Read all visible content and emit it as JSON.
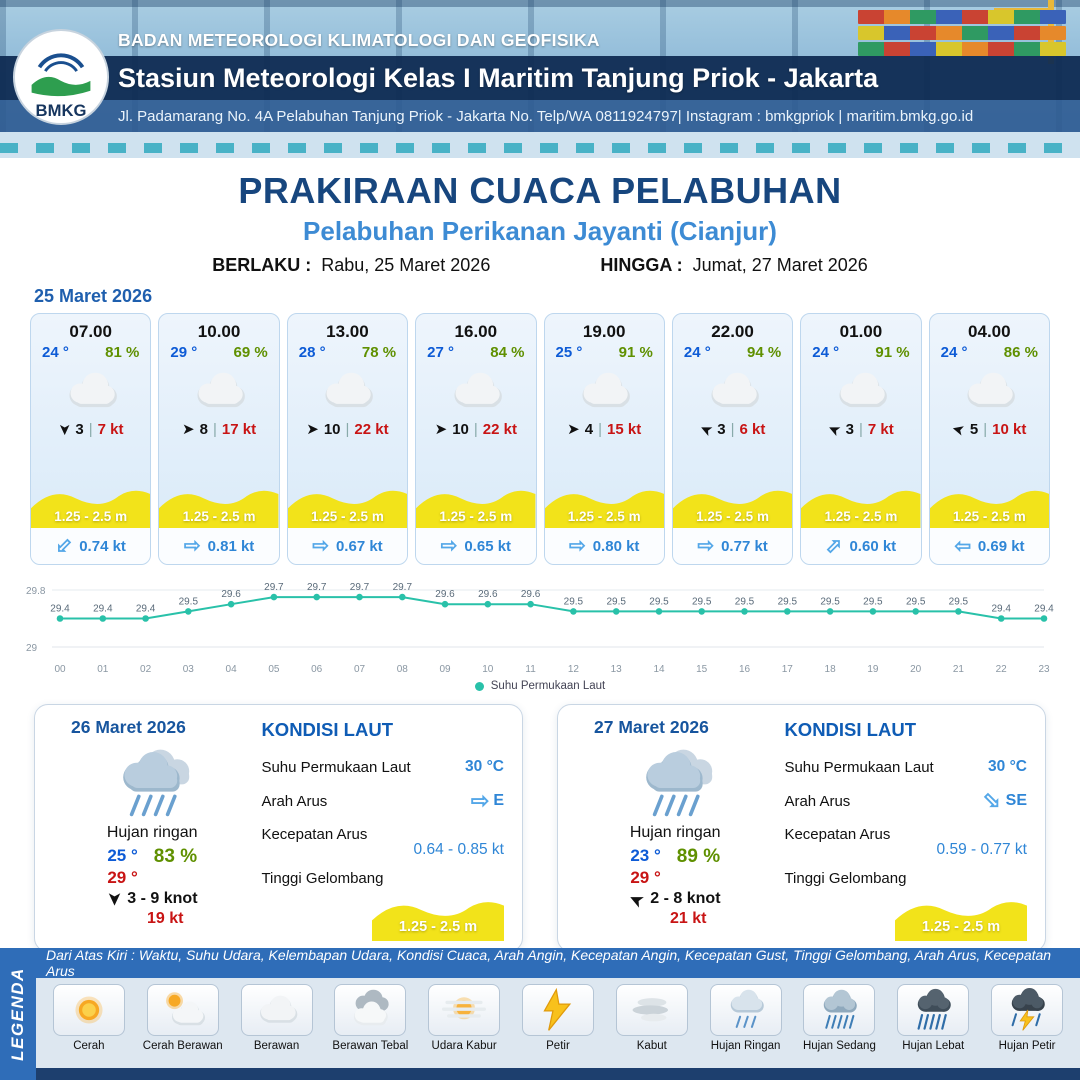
{
  "header": {
    "agency": "BADAN METEOROLOGI KLIMATOLOGI DAN GEOFISIKA",
    "station": "Stasiun Meteorologi Kelas I Maritim Tanjung Priok - Jakarta",
    "address": "Jl. Padamarang No. 4A Pelabuhan Tanjung Priok - Jakarta No. Telp/WA 0811924797| Instagram : bmkgpriok | maritim.bmkg.go.id",
    "logo_text": "BMKG"
  },
  "title": {
    "main": "PRAKIRAAN CUACA PELABUHAN",
    "subtitle": "Pelabuhan Perikanan Jayanti (Cianjur)",
    "valid_label": "BERLAKU :",
    "valid_value": "Rabu, 25 Maret 2026",
    "until_label": "HINGGA :",
    "until_value": "Jumat, 27 Maret 2026"
  },
  "forecast_date": "25 Maret 2026",
  "forecast_cards": [
    {
      "time": "07.00",
      "temp": "24 °",
      "humidity": "81 %",
      "icon": "cloud",
      "wind_speed": "3",
      "wind_gust": "7 kt",
      "wave": "1.25 - 2.5 m",
      "current_speed": "0.74 kt",
      "wind_deg": 90,
      "current_deg": 135
    },
    {
      "time": "10.00",
      "temp": "29 °",
      "humidity": "69 %",
      "icon": "cloud",
      "wind_speed": "8",
      "wind_gust": "17 kt",
      "wave": "1.25 - 2.5 m",
      "current_speed": "0.81 kt",
      "wind_deg": 0,
      "current_deg": 0
    },
    {
      "time": "13.00",
      "temp": "28 °",
      "humidity": "78 %",
      "icon": "cloud",
      "wind_speed": "10",
      "wind_gust": "22 kt",
      "wave": "1.25 - 2.5 m",
      "current_speed": "0.67 kt",
      "wind_deg": 0,
      "current_deg": 0
    },
    {
      "time": "16.00",
      "temp": "27 °",
      "humidity": "84 %",
      "icon": "cloud",
      "wind_speed": "10",
      "wind_gust": "22 kt",
      "wave": "1.25 - 2.5 m",
      "current_speed": "0.65 kt",
      "wind_deg": 0,
      "current_deg": 0
    },
    {
      "time": "19.00",
      "temp": "25 °",
      "humidity": "91 %",
      "icon": "cloud",
      "wind_speed": "4",
      "wind_gust": "15 kt",
      "wave": "1.25 - 2.5 m",
      "current_speed": "0.80 kt",
      "wind_deg": 0,
      "current_deg": 0
    },
    {
      "time": "22.00",
      "temp": "24 °",
      "humidity": "94 %",
      "icon": "cloud",
      "wind_speed": "3",
      "wind_gust": "6 kt",
      "wave": "1.25 - 2.5 m",
      "current_speed": "0.77 kt",
      "wind_deg": 205,
      "current_deg": 0
    },
    {
      "time": "01.00",
      "temp": "24 °",
      "humidity": "91 %",
      "icon": "cloud",
      "wind_speed": "3",
      "wind_gust": "7 kt",
      "wave": "1.25 - 2.5 m",
      "current_speed": "0.60 kt",
      "wind_deg": 205,
      "current_deg": -45
    },
    {
      "time": "04.00",
      "temp": "24 °",
      "humidity": "86 %",
      "icon": "cloud",
      "wind_speed": "5",
      "wind_gust": "10 kt",
      "wave": "1.25 - 2.5 m",
      "current_speed": "0.69 kt",
      "wind_deg": 195,
      "current_deg": 180
    }
  ],
  "chart_data": {
    "type": "line",
    "series_name": "Suhu Permukaan Laut",
    "x": [
      "00",
      "01",
      "02",
      "03",
      "04",
      "05",
      "06",
      "07",
      "08",
      "09",
      "10",
      "11",
      "12",
      "13",
      "14",
      "15",
      "16",
      "17",
      "18",
      "19",
      "20",
      "21",
      "22",
      "23"
    ],
    "values": [
      29.4,
      29.4,
      29.4,
      29.5,
      29.6,
      29.7,
      29.7,
      29.7,
      29.7,
      29.6,
      29.6,
      29.6,
      29.5,
      29.5,
      29.5,
      29.5,
      29.5,
      29.5,
      29.5,
      29.5,
      29.5,
      29.5,
      29.4,
      29.4
    ],
    "ylim": [
      29,
      29.8
    ],
    "line_color": "#29c1a9",
    "grid": false,
    "legend_position": "bottom"
  },
  "day_cards": [
    {
      "date": "26 Maret 2026",
      "icon": "rain-card",
      "condition": "Hujan ringan",
      "temp_min": "25 °",
      "temp_max": "29 °",
      "humidity": "83 %",
      "wind_deg": 90,
      "wind_range": "3 - 9 knot",
      "gust": "19 kt",
      "sea": {
        "title": "KONDISI LAUT",
        "sst_label": "Suhu Permukaan Laut",
        "sst_value": "30 °C",
        "dir_label": "Arah Arus",
        "dir_value": "E",
        "dir_deg": 0,
        "speed_label": "Kecepatan Arus",
        "speed_value": "0.64 - 0.85 kt",
        "wave_label": "Tinggi Gelombang",
        "wave_value": "1.25 - 2.5 m"
      }
    },
    {
      "date": "27 Maret 2026",
      "icon": "rain-card",
      "condition": "Hujan ringan",
      "temp_min": "23 °",
      "temp_max": "29 °",
      "humidity": "89 %",
      "wind_deg": 205,
      "wind_range": "2 - 8 knot",
      "gust": "21 kt",
      "sea": {
        "title": "KONDISI LAUT",
        "sst_label": "Suhu Permukaan Laut",
        "sst_value": "30 °C",
        "dir_label": "Arah Arus",
        "dir_value": "SE",
        "dir_deg": 45,
        "speed_label": "Kecepatan Arus",
        "speed_value": "0.59 - 0.77 kt",
        "wave_label": "Tinggi Gelombang",
        "wave_value": "1.25 - 2.5 m"
      }
    }
  ],
  "legend": {
    "title": "LEGENDA",
    "note": "Dari Atas Kiri : Waktu, Suhu Udara, Kelembapan Udara, Kondisi Cuaca, Arah Angin, Kecepatan Angin, Kecepatan Gust, Tinggi Gelombang, Arah Arus, Kecepatan Arus",
    "items": [
      {
        "label": "Cerah",
        "icon": "sun"
      },
      {
        "label": "Cerah Berawan",
        "icon": "sun-cloud"
      },
      {
        "label": "Berawan",
        "icon": "cloud"
      },
      {
        "label": "Berawan Tebal",
        "icon": "clouds"
      },
      {
        "label": "Udara Kabur",
        "icon": "haze"
      },
      {
        "label": "Petir",
        "icon": "lightning"
      },
      {
        "label": "Kabut",
        "icon": "fog"
      },
      {
        "label": "Hujan Ringan",
        "icon": "rain-light"
      },
      {
        "label": "Hujan Sedang",
        "icon": "rain-medium"
      },
      {
        "label": "Hujan Lebat",
        "icon": "rain-heavy"
      },
      {
        "label": "Hujan Petir",
        "icon": "rain-lightning"
      }
    ]
  },
  "colors": {
    "navy": "#16355e",
    "title_blue": "#17467e",
    "subtitle_blue": "#3d8bd4",
    "temp_blue": "#0d5bd6",
    "humidity_green": "#5f9000",
    "gust_red": "#c81414",
    "wave_yellow": "#f2e31a",
    "current_blue": "#2f86d6",
    "chart_teal": "#29c1a9",
    "legend_bar": "#2f6db8"
  }
}
